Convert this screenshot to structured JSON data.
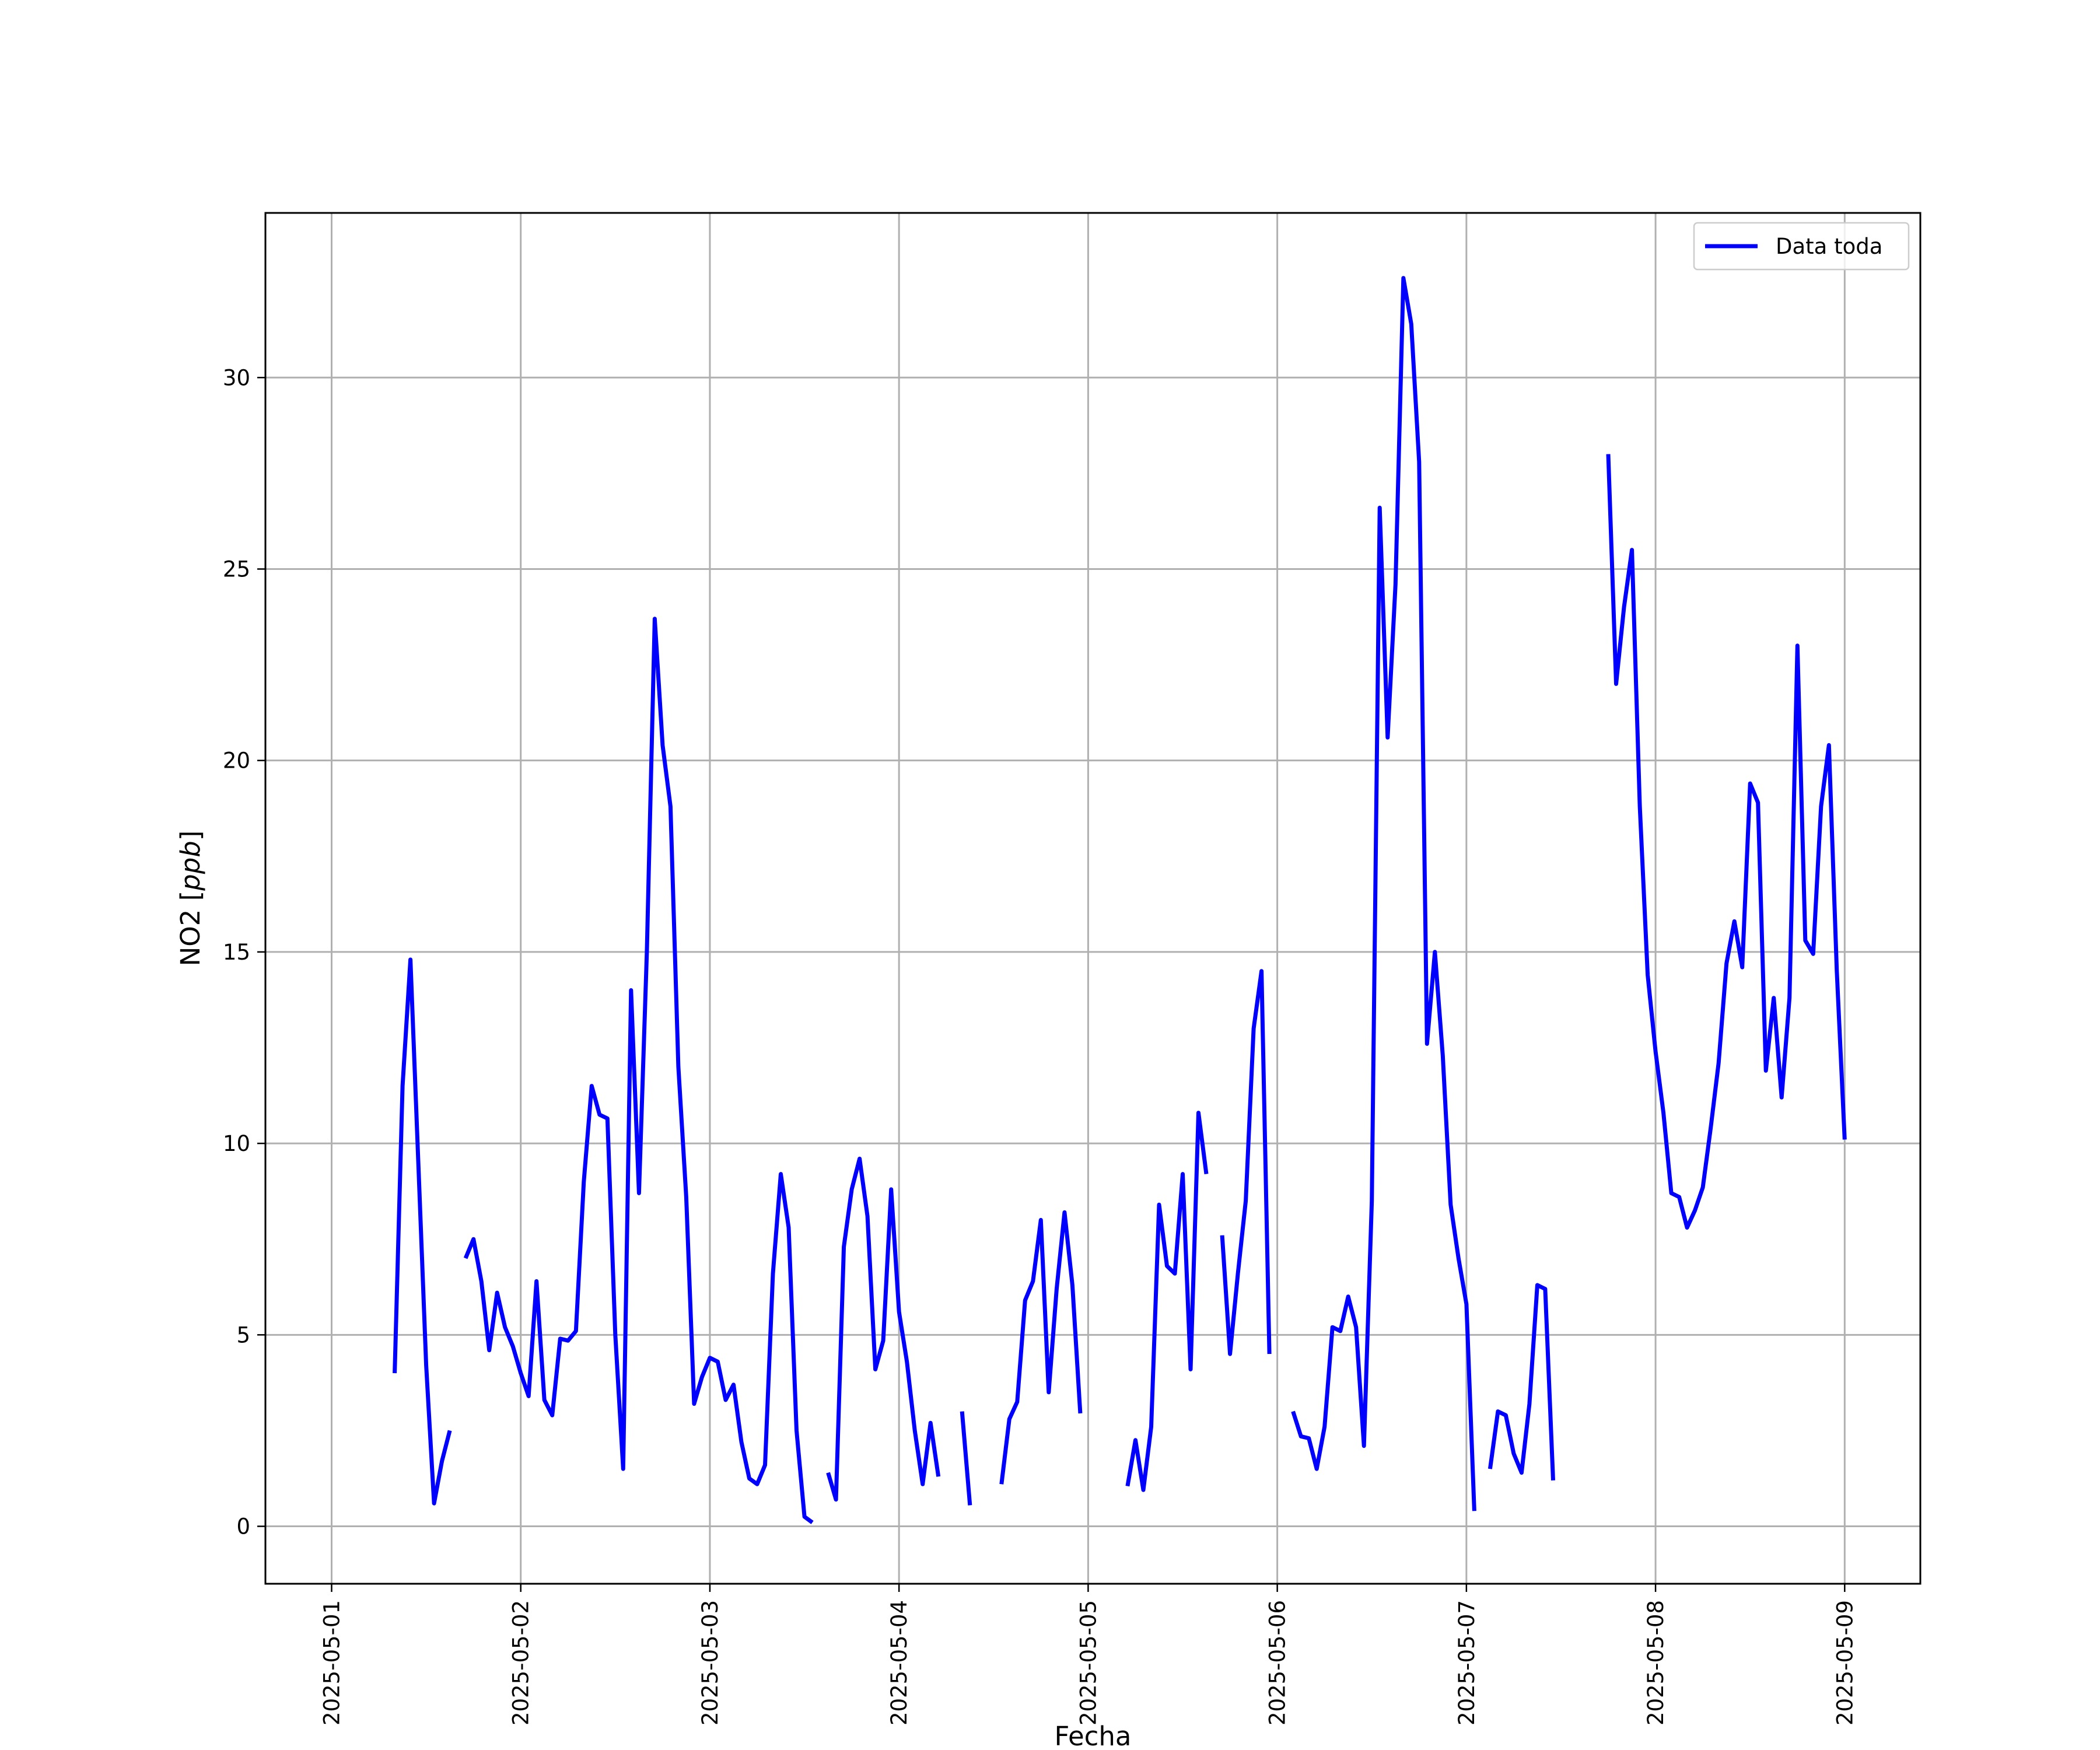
{
  "chart_data": {
    "type": "line",
    "xlabel": "Fecha",
    "ylabel_main": "NO2 [",
    "ylabel_unit": "ppb",
    "ylabel_close": "]",
    "x_ticks": [
      "2025-05-01",
      "2025-05-02",
      "2025-05-03",
      "2025-05-04",
      "2025-05-05",
      "2025-05-06",
      "2025-05-07",
      "2025-05-08",
      "2025-05-09"
    ],
    "y_ticks": [
      0,
      5,
      10,
      15,
      20,
      25,
      30
    ],
    "xlim": [
      "2025-04-30T15:36",
      "2025-05-09T09:36"
    ],
    "ylim": [
      -1.5,
      34.3
    ],
    "grid": true,
    "legend_position": "top-right",
    "series": [
      {
        "name": "Data toda",
        "color": "#0000ff",
        "segments": [
          [
            [
              "2025-05-01T08:00",
              4.0
            ],
            [
              "2025-05-01T09:00",
              11.5
            ],
            [
              "2025-05-01T10:00",
              14.8
            ],
            [
              "2025-05-01T11:00",
              9.5
            ],
            [
              "2025-05-01T12:00",
              4.2
            ],
            [
              "2025-05-01T13:00",
              0.6
            ],
            [
              "2025-05-01T14:00",
              1.7
            ],
            [
              "2025-05-01T15:00",
              2.5
            ]
          ],
          [
            [
              "2025-05-01T17:00",
              7.0
            ],
            [
              "2025-05-01T18:00",
              7.5
            ],
            [
              "2025-05-01T19:00",
              6.4
            ],
            [
              "2025-05-01T20:00",
              4.6
            ],
            [
              "2025-05-01T21:00",
              6.1
            ],
            [
              "2025-05-01T22:00",
              5.2
            ],
            [
              "2025-05-01T23:00",
              4.7
            ],
            [
              "2025-05-02T00:00",
              4.0
            ],
            [
              "2025-05-02T01:00",
              3.4
            ],
            [
              "2025-05-02T02:00",
              6.4
            ],
            [
              "2025-05-02T03:00",
              3.3
            ],
            [
              "2025-05-02T04:00",
              2.9
            ],
            [
              "2025-05-02T05:00",
              4.9
            ],
            [
              "2025-05-02T06:00",
              4.85
            ],
            [
              "2025-05-02T07:00",
              5.1
            ],
            [
              "2025-05-02T08:00",
              9.0
            ],
            [
              "2025-05-02T09:00",
              11.5
            ],
            [
              "2025-05-02T10:00",
              10.75
            ],
            [
              "2025-05-02T11:00",
              10.65
            ],
            [
              "2025-05-02T12:00",
              5.0
            ],
            [
              "2025-05-02T13:00",
              1.5
            ],
            [
              "2025-05-02T14:00",
              14.0
            ],
            [
              "2025-05-02T15:00",
              8.7
            ],
            [
              "2025-05-02T16:00",
              15.0
            ],
            [
              "2025-05-02T17:00",
              23.7
            ],
            [
              "2025-05-02T18:00",
              20.4
            ],
            [
              "2025-05-02T19:00",
              18.8
            ],
            [
              "2025-05-02T20:00",
              12.0
            ],
            [
              "2025-05-02T21:00",
              8.6
            ],
            [
              "2025-05-02T22:00",
              3.2
            ],
            [
              "2025-05-02T23:00",
              3.9
            ],
            [
              "2025-05-03T00:00",
              4.4
            ],
            [
              "2025-05-03T01:00",
              4.3
            ],
            [
              "2025-05-03T02:00",
              3.3
            ],
            [
              "2025-05-03T03:00",
              3.7
            ],
            [
              "2025-05-03T04:00",
              2.2
            ],
            [
              "2025-05-03T05:00",
              1.25
            ],
            [
              "2025-05-03T06:00",
              1.1
            ],
            [
              "2025-05-03T07:00",
              1.6
            ],
            [
              "2025-05-03T08:00",
              6.6
            ],
            [
              "2025-05-03T09:00",
              9.2
            ],
            [
              "2025-05-03T10:00",
              7.8
            ],
            [
              "2025-05-03T11:00",
              2.5
            ],
            [
              "2025-05-03T12:00",
              0.25
            ],
            [
              "2025-05-03T13:00",
              0.1
            ]
          ],
          [
            [
              "2025-05-03T15:00",
              1.4
            ],
            [
              "2025-05-03T16:00",
              0.7
            ],
            [
              "2025-05-03T17:00",
              7.3
            ],
            [
              "2025-05-03T18:00",
              8.8
            ],
            [
              "2025-05-03T19:00",
              9.6
            ],
            [
              "2025-05-03T20:00",
              8.1
            ],
            [
              "2025-05-03T21:00",
              4.1
            ],
            [
              "2025-05-03T22:00",
              4.85
            ],
            [
              "2025-05-03T23:00",
              8.8
            ],
            [
              "2025-05-04T00:00",
              5.6
            ],
            [
              "2025-05-04T01:00",
              4.3
            ],
            [
              "2025-05-04T02:00",
              2.5
            ],
            [
              "2025-05-04T03:00",
              1.1
            ],
            [
              "2025-05-04T04:00",
              2.7
            ],
            [
              "2025-05-04T05:00",
              1.3
            ]
          ],
          [
            [
              "2025-05-04T08:00",
              3.0
            ],
            [
              "2025-05-04T09:00",
              0.55
            ]
          ],
          [
            [
              "2025-05-04T13:00",
              1.1
            ],
            [
              "2025-05-04T14:00",
              2.8
            ],
            [
              "2025-05-04T15:00",
              3.25
            ],
            [
              "2025-05-04T16:00",
              5.9
            ],
            [
              "2025-05-04T17:00",
              6.4
            ],
            [
              "2025-05-04T18:00",
              8.0
            ],
            [
              "2025-05-04T19:00",
              3.5
            ],
            [
              "2025-05-04T20:00",
              6.2
            ],
            [
              "2025-05-04T21:00",
              8.2
            ],
            [
              "2025-05-04T22:00",
              6.3
            ],
            [
              "2025-05-04T23:00",
              2.95
            ]
          ],
          [
            [
              "2025-05-05T05:00",
              1.05
            ],
            [
              "2025-05-05T06:00",
              2.25
            ],
            [
              "2025-05-05T07:00",
              0.95
            ],
            [
              "2025-05-05T08:00",
              2.6
            ],
            [
              "2025-05-05T09:00",
              8.4
            ],
            [
              "2025-05-05T10:00",
              6.8
            ],
            [
              "2025-05-05T11:00",
              6.6
            ],
            [
              "2025-05-05T12:00",
              9.2
            ],
            [
              "2025-05-05T13:00",
              4.1
            ],
            [
              "2025-05-05T14:00",
              10.8
            ],
            [
              "2025-05-05T15:00",
              9.2
            ]
          ],
          [
            [
              "2025-05-05T17:00",
              7.6
            ],
            [
              "2025-05-05T18:00",
              4.5
            ],
            [
              "2025-05-05T19:00",
              6.6
            ],
            [
              "2025-05-05T20:00",
              8.5
            ],
            [
              "2025-05-05T21:00",
              13.0
            ],
            [
              "2025-05-05T22:00",
              14.5
            ],
            [
              "2025-05-05T23:00",
              4.5
            ]
          ],
          [
            [
              "2025-05-06T02:00",
              3.0
            ],
            [
              "2025-05-06T03:00",
              2.35
            ],
            [
              "2025-05-06T04:00",
              2.3
            ],
            [
              "2025-05-06T05:00",
              1.5
            ],
            [
              "2025-05-06T06:00",
              2.6
            ],
            [
              "2025-05-06T07:00",
              5.2
            ],
            [
              "2025-05-06T08:00",
              5.1
            ],
            [
              "2025-05-06T09:00",
              6.0
            ],
            [
              "2025-05-06T10:00",
              5.2
            ],
            [
              "2025-05-06T11:00",
              2.1
            ],
            [
              "2025-05-06T12:00",
              8.5
            ],
            [
              "2025-05-06T13:00",
              26.6
            ],
            [
              "2025-05-06T14:00",
              20.6
            ],
            [
              "2025-05-06T15:00",
              24.6
            ],
            [
              "2025-05-06T16:00",
              32.6
            ],
            [
              "2025-05-06T17:00",
              31.4
            ],
            [
              "2025-05-06T18:00",
              27.8
            ],
            [
              "2025-05-06T19:00",
              12.6
            ],
            [
              "2025-05-06T20:00",
              15.0
            ],
            [
              "2025-05-06T21:00",
              12.3
            ],
            [
              "2025-05-06T22:00",
              8.4
            ],
            [
              "2025-05-06T23:00",
              7.0
            ],
            [
              "2025-05-07T00:00",
              5.8
            ],
            [
              "2025-05-07T01:00",
              0.4
            ]
          ],
          [
            [
              "2025-05-07T03:00",
              1.5
            ],
            [
              "2025-05-07T04:00",
              3.0
            ],
            [
              "2025-05-07T05:00",
              2.9
            ],
            [
              "2025-05-07T06:00",
              1.9
            ],
            [
              "2025-05-07T07:00",
              1.4
            ],
            [
              "2025-05-07T08:00",
              3.2
            ],
            [
              "2025-05-07T09:00",
              6.3
            ],
            [
              "2025-05-07T10:00",
              6.2
            ],
            [
              "2025-05-07T11:00",
              1.2
            ]
          ],
          [
            [
              "2025-05-07T18:00",
              28.0
            ],
            [
              "2025-05-07T19:00",
              22.0
            ],
            [
              "2025-05-07T20:00",
              24.0
            ],
            [
              "2025-05-07T21:00",
              25.5
            ],
            [
              "2025-05-07T22:00",
              18.8
            ],
            [
              "2025-05-07T23:00",
              14.4
            ],
            [
              "2025-05-08T00:00",
              12.4
            ],
            [
              "2025-05-08T01:00",
              10.8
            ],
            [
              "2025-05-08T02:00",
              8.7
            ],
            [
              "2025-05-08T03:00",
              8.6
            ],
            [
              "2025-05-08T04:00",
              7.8
            ],
            [
              "2025-05-08T05:00",
              8.25
            ],
            [
              "2025-05-08T06:00",
              8.85
            ],
            [
              "2025-05-08T07:00",
              10.4
            ],
            [
              "2025-05-08T08:00",
              12.1
            ],
            [
              "2025-05-08T09:00",
              14.7
            ],
            [
              "2025-05-08T10:00",
              15.8
            ],
            [
              "2025-05-08T11:00",
              14.6
            ],
            [
              "2025-05-08T12:00",
              19.4
            ],
            [
              "2025-05-08T13:00",
              18.9
            ],
            [
              "2025-05-08T14:00",
              11.9
            ],
            [
              "2025-05-08T15:00",
              13.8
            ],
            [
              "2025-05-08T16:00",
              11.2
            ],
            [
              "2025-05-08T17:00",
              13.8
            ],
            [
              "2025-05-08T18:00",
              23.0
            ],
            [
              "2025-05-08T19:00",
              15.3
            ],
            [
              "2025-05-08T20:00",
              14.95
            ],
            [
              "2025-05-08T21:00",
              18.8
            ],
            [
              "2025-05-08T22:00",
              20.4
            ],
            [
              "2025-05-08T23:00",
              14.5
            ],
            [
              "2025-05-09T00:00",
              10.1
            ]
          ]
        ]
      }
    ]
  }
}
